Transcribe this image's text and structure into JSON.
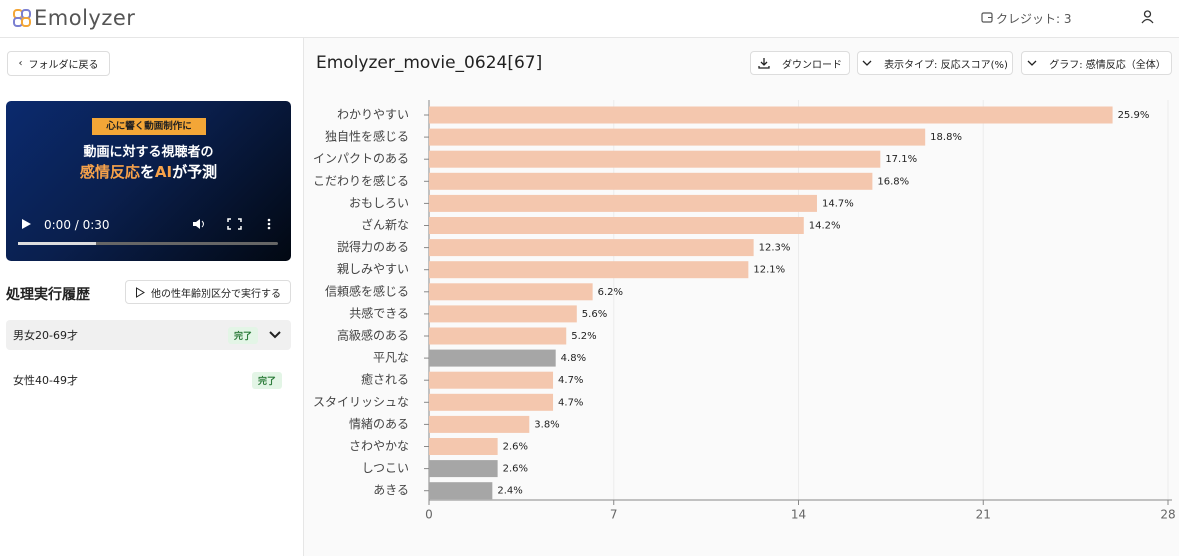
{
  "header": {
    "logo": "Emolyzer",
    "credits": "クレジット: 3"
  },
  "sidebar": {
    "back": "フォルダに戻る",
    "video": {
      "badge": "心に響く動画制作に",
      "line1": "動画に対する視聴者の",
      "line2": [
        "感情反応",
        "を",
        "AI",
        "が予測"
      ],
      "time": "0:00 / 0:30"
    },
    "history_title": "処理実行履歴",
    "run_button": "他の性年齢別区分で実行する",
    "history": [
      {
        "label": "男女20-69才",
        "status": "完了"
      },
      {
        "label": "女性40-49才",
        "status": "完了"
      }
    ]
  },
  "main": {
    "title": "Emolyzer_movie_0624[67]",
    "buttons": [
      "ダウンロード",
      "表示タイプ: 反応スコア(%)",
      "グラフ: 感情反応（全体）"
    ]
  },
  "chart_data": {
    "type": "bar",
    "orientation": "horizontal",
    "categories": [
      "わかりやすい",
      "独自性を感じる",
      "インパクトのある",
      "こだわりを感じる",
      "おもしろい",
      "ざん新な",
      "説得力のある",
      "親しみやすい",
      "信頼感を感じる",
      "共感できる",
      "高級感のある",
      "平凡な",
      "癒される",
      "スタイリッシュな",
      "情緒のある",
      "さわやかな",
      "しつこい",
      "あきる"
    ],
    "values": [
      25.9,
      18.8,
      17.1,
      16.8,
      14.7,
      14.2,
      12.3,
      12.1,
      6.2,
      5.6,
      5.2,
      4.8,
      4.7,
      4.7,
      3.8,
      2.6,
      2.6,
      2.4
    ],
    "value_labels": [
      "25.9%",
      "18.8%",
      "17.1%",
      "16.8%",
      "14.7%",
      "14.2%",
      "12.3%",
      "12.1%",
      "6.2%",
      "5.6%",
      "5.2%",
      "4.8%",
      "4.7%",
      "4.7%",
      "3.8%",
      "2.6%",
      "2.6%",
      "2.4%"
    ],
    "colors": [
      "#f4c7ae",
      "#f4c7ae",
      "#f4c7ae",
      "#f4c7ae",
      "#f4c7ae",
      "#f4c7ae",
      "#f4c7ae",
      "#f4c7ae",
      "#f4c7ae",
      "#f4c7ae",
      "#f4c7ae",
      "#a6a6a6",
      "#f4c7ae",
      "#f4c7ae",
      "#f4c7ae",
      "#f4c7ae",
      "#a6a6a6",
      "#a6a6a6"
    ],
    "xlim": [
      0,
      28
    ],
    "xticks": [
      0,
      7,
      14,
      21,
      28
    ],
    "grid": true
  }
}
